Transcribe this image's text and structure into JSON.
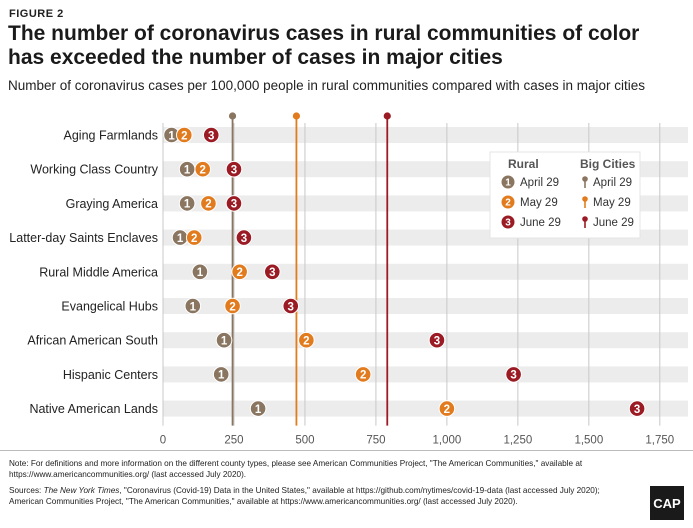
{
  "figure_label": "FIGURE 2",
  "title": "The number of coronavirus cases in rural communities of color has exceeded the number of cases in major cities",
  "subtitle": "Number of coronavirus cases per 100,000 people in rural communities compared with cases in major cities",
  "notes": {
    "note": "Note: For definitions and more information on the different county types, please see American Communities Project, \"The American Communities,\" available at https://www.americancommunities.org/ (last accessed July 2020).",
    "sources_prefix": "Sources: ",
    "sources_italic": "The New York Times",
    "sources_rest": ", \"Coronavirus (Covid-19) Data in the United States,\" available at https://github.com/nytimes/covid-19-data (last accessed July 2020); American Communities Project, \"The American Communities,\" available at https://www.americancommunities.org/ (last accessed July 2020)."
  },
  "logo_text": "CAP",
  "colors": {
    "april": "#8a7560",
    "may": "#e27b1d",
    "june": "#9b1b25",
    "band": "#ececec",
    "grid": "#c8c8c8"
  },
  "chart_data": {
    "type": "scatter",
    "categories": [
      "Aging Farmlands",
      "Working Class Country",
      "Graying America",
      "Latter-day Saints Enclaves",
      "Rural Middle America",
      "Evangelical Hubs",
      "African American South",
      "Hispanic Centers",
      "Native American Lands"
    ],
    "series": [
      {
        "name": "April 29",
        "marker": "1",
        "values": [
          30,
          85,
          85,
          60,
          130,
          105,
          215,
          205,
          335
        ]
      },
      {
        "name": "May 29",
        "marker": "2",
        "values": [
          75,
          140,
          160,
          110,
          270,
          245,
          505,
          705,
          1000
        ]
      },
      {
        "name": "June 29",
        "marker": "3",
        "values": [
          170,
          250,
          250,
          285,
          385,
          450,
          965,
          1235,
          1670
        ]
      }
    ],
    "reference_lines": [
      {
        "name": "April 29",
        "value": 245
      },
      {
        "name": "May 29",
        "value": 470
      },
      {
        "name": "June 29",
        "value": 790
      }
    ],
    "legend": {
      "title_rural": "Rural",
      "title_cities": "Big Cities",
      "placement": "top-right"
    },
    "xlim": [
      0,
      1800
    ],
    "xticks": [
      0,
      250,
      500,
      750,
      1000,
      1250,
      1500,
      1750
    ],
    "xtick_labels": [
      "0",
      "250",
      "500",
      "750",
      "1,000",
      "1,250",
      "1,500",
      "1,750"
    ],
    "grid": true
  }
}
